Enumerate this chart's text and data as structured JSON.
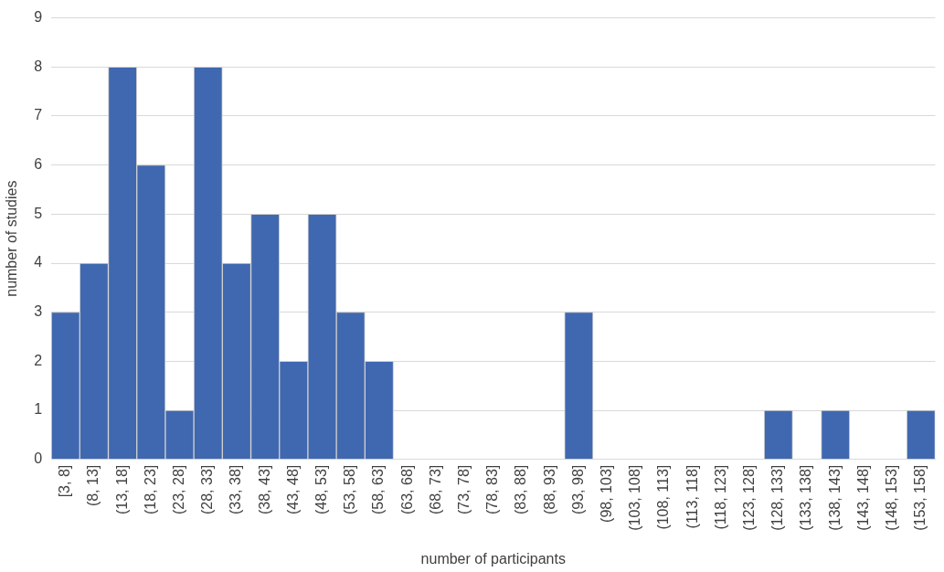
{
  "chart_data": {
    "type": "bar",
    "xlabel": "number of participants",
    "ylabel": "number of studies",
    "categories": [
      "[3, 8]",
      "(8, 13]",
      "(13, 18]",
      "(18, 23]",
      "(23, 28]",
      "(28, 33]",
      "(33, 38]",
      "(38, 43]",
      "(43, 48]",
      "(48, 53]",
      "(53, 58]",
      "(58, 63]",
      "(63, 68]",
      "(68, 73]",
      "(73, 78]",
      "(78, 83]",
      "(83, 88]",
      "(88, 93]",
      "(93, 98]",
      "(98, 103]",
      "(103, 108]",
      "(108, 113]",
      "(113, 118]",
      "(118, 123]",
      "(123, 128]",
      "(128, 133]",
      "(133, 138]",
      "(138, 143]",
      "(143, 148]",
      "(148, 153]",
      "(153, 158]"
    ],
    "values": [
      3,
      4,
      8,
      6,
      1,
      8,
      4,
      5,
      2,
      5,
      3,
      2,
      0,
      0,
      0,
      0,
      0,
      0,
      3,
      0,
      0,
      0,
      0,
      0,
      0,
      1,
      0,
      1,
      0,
      0,
      1
    ],
    "color": "#4068b0",
    "ylim": [
      0,
      9
    ],
    "yticks": [
      0,
      1,
      2,
      3,
      4,
      5,
      6,
      7,
      8,
      9
    ],
    "grid": "y",
    "legend": false
  }
}
